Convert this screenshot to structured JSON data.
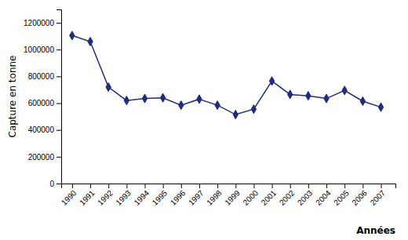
{
  "chart_data": {
    "type": "line",
    "x": [
      1990,
      1991,
      1992,
      1993,
      1994,
      1995,
      1996,
      1997,
      1998,
      1999,
      2000,
      2001,
      2002,
      2003,
      2004,
      2005,
      2006,
      2007
    ],
    "values": [
      1105000,
      1060000,
      720000,
      620000,
      635000,
      640000,
      585000,
      630000,
      585000,
      515000,
      555000,
      765000,
      665000,
      655000,
      635000,
      695000,
      615000,
      570000
    ],
    "color": "#1F2D7B",
    "marker": "diamond",
    "ylabel": "Capture en tonne",
    "xlabel": "Années",
    "xlim": [
      1989.4,
      2007.8
    ],
    "xticks": [
      1990,
      1991,
      1992,
      1993,
      1994,
      1995,
      1996,
      1997,
      1998,
      1999,
      2000,
      2001,
      2002,
      2003,
      2004,
      2005,
      2006,
      2007
    ],
    "ylim": [
      0,
      1300000
    ],
    "yticks": [
      0,
      200000,
      400000,
      600000,
      800000,
      1000000,
      1200000
    ],
    "grid": false
  }
}
